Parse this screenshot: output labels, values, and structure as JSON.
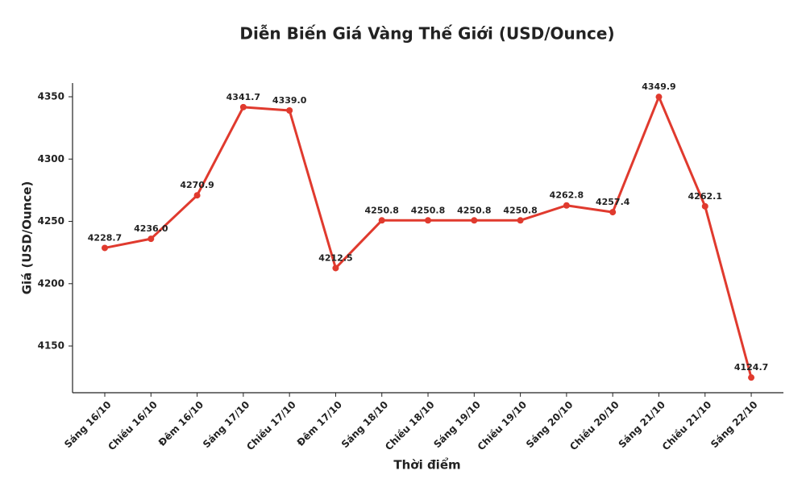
{
  "chart_data": {
    "type": "line",
    "title": "Diễn Biến Giá Vàng Thế Giới (USD/Ounce)",
    "x_label": "Thời điểm",
    "y_label": "Giá (USD/Ounce)",
    "categories": [
      "Sáng 16/10",
      "Chiều 16/10",
      "Đêm 16/10",
      "Sáng 17/10",
      "Chiều 17/10",
      "Đêm 17/10",
      "Sáng 18/10",
      "Chiều 18/10",
      "Sáng 19/10",
      "Chiều 19/10",
      "Sáng 20/10",
      "Chiều 20/10",
      "Sáng 21/10",
      "Chiều 21/10",
      "Sáng 22/10"
    ],
    "values": [
      4228.7,
      4236.0,
      4270.9,
      4341.7,
      4339.0,
      4212.5,
      4250.8,
      4250.8,
      4250.8,
      4250.8,
      4262.8,
      4257.4,
      4349.9,
      4262.1,
      4124.7
    ],
    "value_labels": [
      "4228.7",
      "4236.0",
      "4270.9",
      "4341.7",
      "4339.0",
      "4212.5",
      "4250.8",
      "4250.8",
      "4250.8",
      "4250.8",
      "4262.8",
      "4257.4",
      "4349.9",
      "4262.1",
      "4124.7"
    ],
    "color": "#e03a2e",
    "ylim": [
      4112.5,
      4361
    ],
    "yticks": [
      4150,
      4200,
      4250,
      4300,
      4350
    ]
  }
}
